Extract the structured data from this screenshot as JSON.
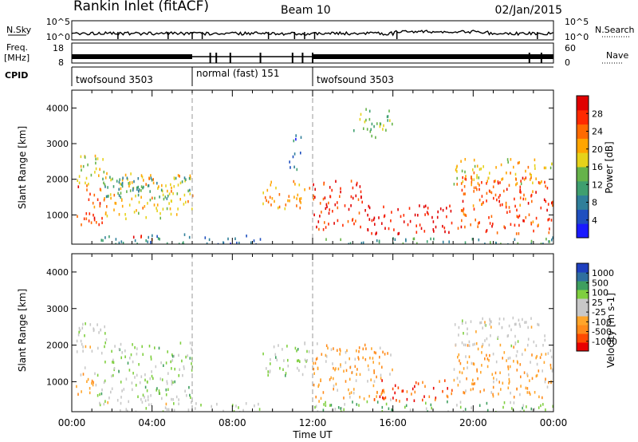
{
  "header": {
    "site": "Rankin Inlet (fitACF)",
    "beam": "Beam 10",
    "date": "02/Jan/2015"
  },
  "status_panels": {
    "nsky_label": "N.Sky",
    "nsky_ticks": [
      "10^5",
      "10^0"
    ],
    "nsearch_label": "N.Search",
    "nsearch_ticks": [
      "10^5",
      "10^0"
    ],
    "freq_label": "Freq.",
    "freq_unit": "[MHz]",
    "freq_ticks": [
      "18",
      "8"
    ],
    "nave_label": "Nave",
    "nave_ticks": [
      "60",
      "0"
    ],
    "cpid_label": "CPID",
    "cpid_segments": [
      {
        "label": "twofsound 3503",
        "start": 0,
        "end": 6
      },
      {
        "label": "normal (fast) 151",
        "start": 6,
        "end": 12
      },
      {
        "label": "twofsound 3503",
        "start": 12,
        "end": 24
      }
    ]
  },
  "chart_data": [
    {
      "type": "heatmap",
      "title": "",
      "xlabel": "Time UT",
      "ylabel": "Slant Range [km]",
      "xlim": [
        0,
        24
      ],
      "ylim": [
        180,
        4500
      ],
      "x_ticks": [
        "00:00",
        "04:00",
        "08:00",
        "12:00",
        "16:00",
        "20:00",
        "00:00"
      ],
      "y_ticks": [
        "1000",
        "2000",
        "3000",
        "4000"
      ],
      "colorbar": {
        "label": "Power [dB]",
        "ticks": [
          "28",
          "24",
          "20",
          "16",
          "12",
          "8",
          "4"
        ],
        "range": [
          0,
          30
        ],
        "colors": [
          "#1a1aff",
          "#1f4fbf",
          "#2f7f9a",
          "#3f9f6f",
          "#66b34a",
          "#e6d21a",
          "#ffa500",
          "#ff6a00",
          "#ff2a00",
          "#e00000"
        ]
      },
      "scatter_regions": [
        {
          "t": [
            0.2,
            1.5
          ],
          "r": [
            700,
            1900
          ],
          "v": 24
        },
        {
          "t": [
            0.1,
            1.8
          ],
          "r": [
            1900,
            2700
          ],
          "v": 16
        },
        {
          "t": [
            1.5,
            6.0
          ],
          "r": [
            900,
            2200
          ],
          "v": 18
        },
        {
          "t": [
            1.5,
            6.0
          ],
          "r": [
            1400,
            2100
          ],
          "v": 10
        },
        {
          "t": [
            1.2,
            6.0
          ],
          "r": [
            200,
            500
          ],
          "v": 8
        },
        {
          "t": [
            3.0,
            4.0
          ],
          "r": [
            250,
            450
          ],
          "v": 26
        },
        {
          "t": [
            6.0,
            9.5
          ],
          "r": [
            200,
            450
          ],
          "v": 5
        },
        {
          "t": [
            9.5,
            11.9
          ],
          "r": [
            1200,
            2000
          ],
          "v": 20
        },
        {
          "t": [
            10.8,
            11.4
          ],
          "r": [
            2300,
            3300
          ],
          "v": 6
        },
        {
          "t": [
            12.0,
            14.5
          ],
          "r": [
            600,
            2000
          ],
          "v": 26
        },
        {
          "t": [
            14.5,
            19.0
          ],
          "r": [
            500,
            1300
          ],
          "v": 28
        },
        {
          "t": [
            14.0,
            16.0
          ],
          "r": [
            3200,
            4000
          ],
          "v": 14
        },
        {
          "t": [
            19.0,
            24.0
          ],
          "r": [
            500,
            2100
          ],
          "v": 24
        },
        {
          "t": [
            19.0,
            24.0
          ],
          "r": [
            1900,
            2600
          ],
          "v": 18
        },
        {
          "t": [
            12.0,
            24.0
          ],
          "r": [
            200,
            400
          ],
          "v": 10
        }
      ]
    },
    {
      "type": "heatmap",
      "title": "",
      "xlabel": "Time UT",
      "ylabel": "Slant Range [km]",
      "xlim": [
        0,
        24
      ],
      "ylim": [
        180,
        4500
      ],
      "x_ticks": [
        "00:00",
        "04:00",
        "08:00",
        "12:00",
        "16:00",
        "20:00",
        "00:00"
      ],
      "y_ticks": [
        "1000",
        "2000",
        "3000",
        "4000"
      ],
      "colorbar": {
        "label": "Velocity [m s-1]",
        "ticks": [
          "1000",
          "500",
          "100",
          "25",
          "-25",
          "-100",
          "-500",
          "-1000"
        ],
        "range": [
          -1000,
          1000
        ],
        "colors": [
          "#e80000",
          "#ff4a00",
          "#ff8a1a",
          "#ffa52a",
          "#c8c8c8",
          "#c8c8c8",
          "#7fcf3f",
          "#3f9f5f",
          "#2f6f9f",
          "#1f3fbf"
        ]
      },
      "scatter_regions": [
        {
          "t": [
            0.2,
            1.2
          ],
          "r": [
            600,
            1500
          ],
          "v": -300
        },
        {
          "t": [
            0.1,
            1.8
          ],
          "r": [
            1800,
            2700
          ],
          "v": 0
        },
        {
          "t": [
            1.2,
            6.0
          ],
          "r": [
            600,
            2100
          ],
          "v": 200
        },
        {
          "t": [
            1.2,
            6.0
          ],
          "r": [
            200,
            600
          ],
          "v": 40
        },
        {
          "t": [
            6.0,
            9.5
          ],
          "r": [
            200,
            450
          ],
          "v": 150
        },
        {
          "t": [
            9.5,
            11.9
          ],
          "r": [
            1200,
            2100
          ],
          "v": 220
        },
        {
          "t": [
            12.0,
            16.0
          ],
          "r": [
            500,
            2100
          ],
          "v": -350
        },
        {
          "t": [
            15.0,
            19.0
          ],
          "r": [
            500,
            1100
          ],
          "v": -700
        },
        {
          "t": [
            19.0,
            24.0
          ],
          "r": [
            600,
            2100
          ],
          "v": -300
        },
        {
          "t": [
            19.0,
            24.0
          ],
          "r": [
            2000,
            2800
          ],
          "v": 0
        },
        {
          "t": [
            12.0,
            24.0
          ],
          "r": [
            200,
            500
          ],
          "v": 300
        }
      ]
    }
  ]
}
